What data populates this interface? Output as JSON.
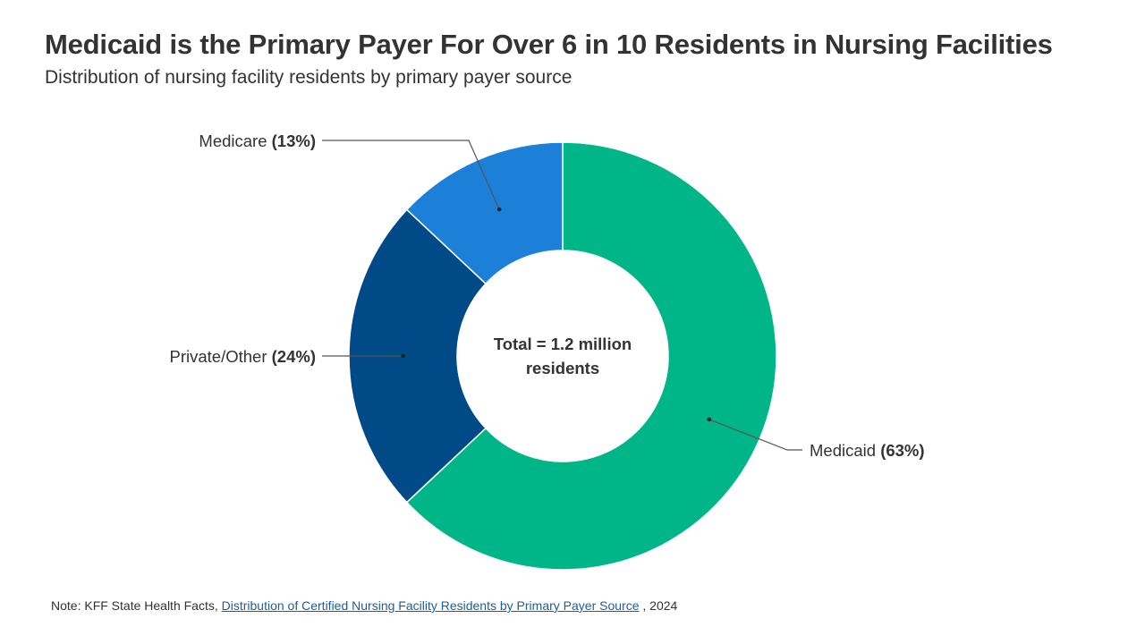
{
  "header": {
    "title": "Medicaid is the Primary Payer For Over 6 in 10 Residents in Nursing Facilities",
    "subtitle": "Distribution of nursing facility residents by primary payer source"
  },
  "chart_data": {
    "type": "pie",
    "variant": "donut",
    "center_label_lines": [
      "Total = 1.2 million",
      "residents"
    ],
    "slices": [
      {
        "name": "Medicaid",
        "value": 63,
        "value_label": "(63%)",
        "color": "#00b588"
      },
      {
        "name": "Private/Other",
        "value": 24,
        "value_label": "(24%)",
        "color": "#004a87"
      },
      {
        "name": "Medicare",
        "value": 13,
        "value_label": "(13%)",
        "color": "#1c80d9"
      }
    ],
    "label_text_color": "#333333",
    "leader_line_color": "#555555"
  },
  "footer": {
    "note_prefix": "Note: KFF State Health Facts, ",
    "link_text": "Distribution of Certified Nursing Facility Residents by Primary Payer Source",
    "note_suffix": " , 2024",
    "link_color": "#1a5f9e"
  }
}
